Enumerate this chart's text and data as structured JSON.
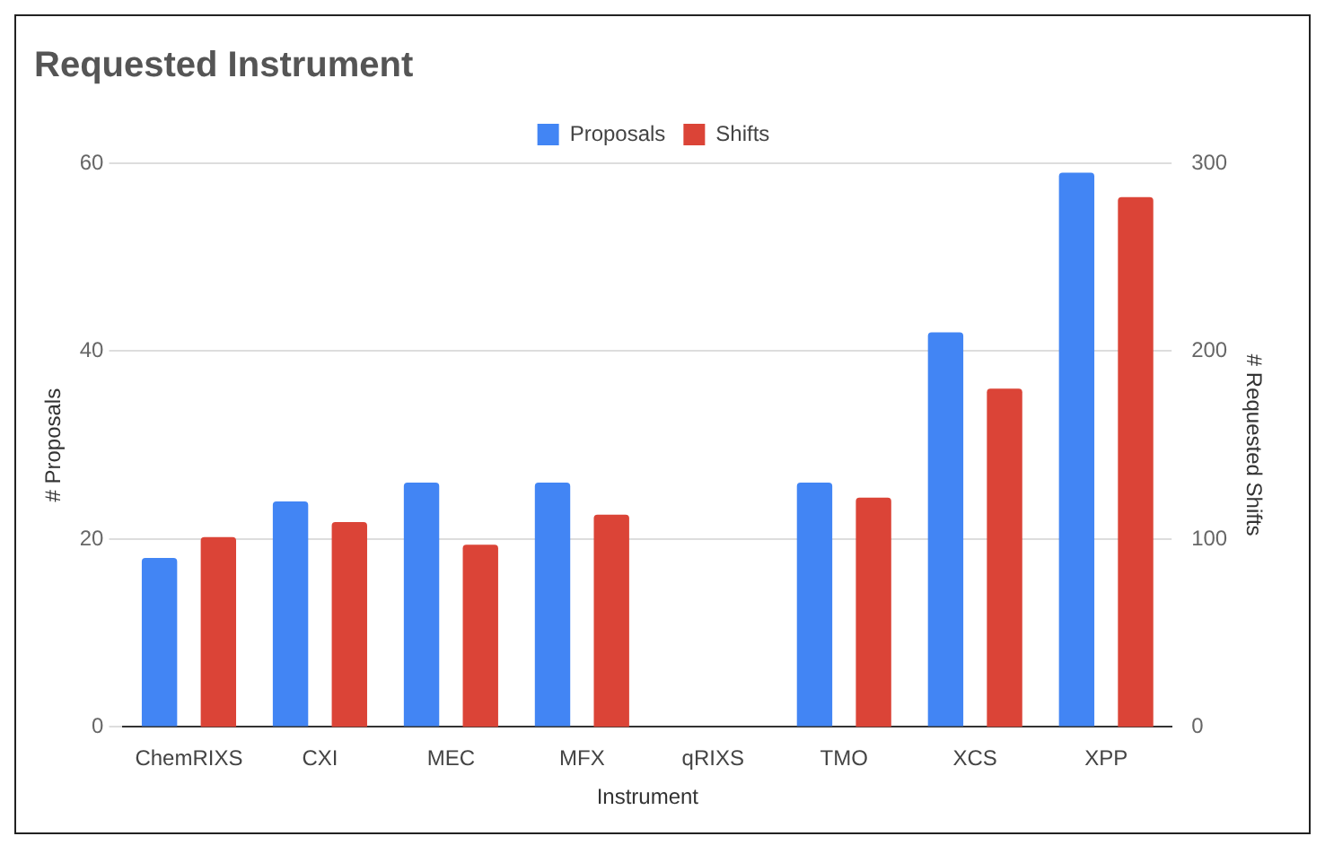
{
  "chart_data": {
    "type": "bar",
    "title": "Requested Instrument",
    "xlabel": "Instrument",
    "ylabel": "# Proposals",
    "y2label": "# Requested Shifts",
    "categories": [
      "ChemRIXS",
      "CXI",
      "MEC",
      "MFX",
      "qRIXS",
      "TMO",
      "XCS",
      "XPP"
    ],
    "series": [
      {
        "name": "Proposals",
        "color": "#4285f4",
        "values": [
          18,
          24,
          26,
          26,
          0,
          26,
          42,
          59
        ]
      },
      {
        "name": "Shifts",
        "color": "#db4437",
        "axis": "y2",
        "values": [
          101,
          109,
          97,
          113,
          0,
          122,
          180,
          282
        ]
      }
    ],
    "ylim": [
      0,
      60
    ],
    "yticks": [
      0,
      20,
      40,
      60
    ],
    "y2lim": [
      0,
      300
    ],
    "y2ticks": [
      0,
      100,
      200,
      300
    ],
    "grid": "y",
    "legend": "top"
  }
}
